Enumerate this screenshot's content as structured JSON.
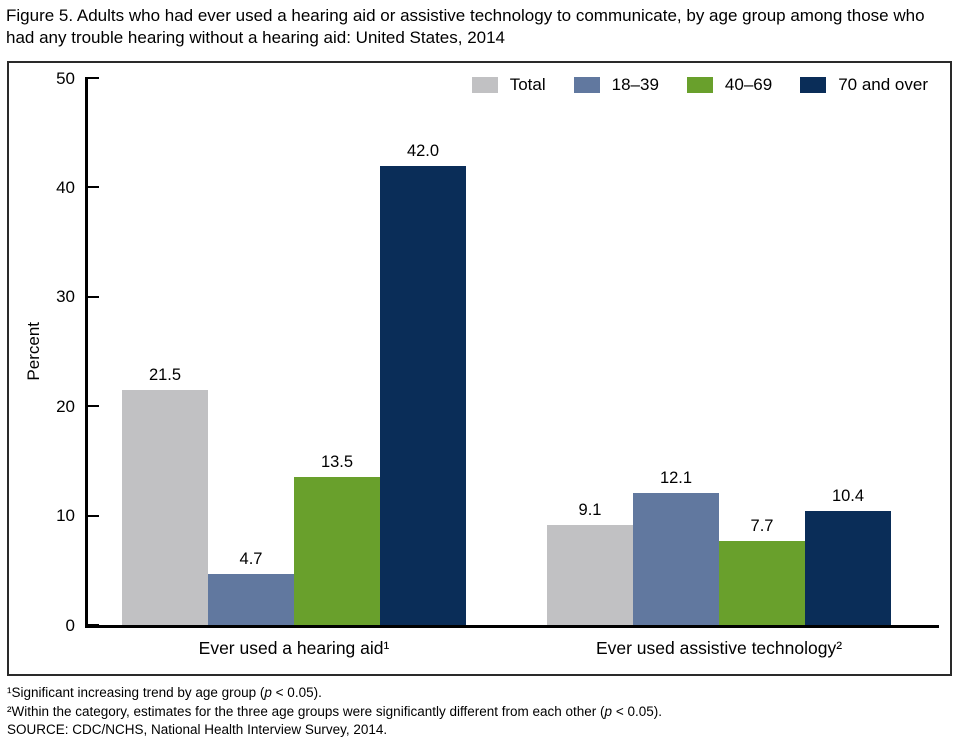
{
  "title": "Figure 5. Adults who had ever used a hearing aid or assistive technology to communicate, by age group among those who had any trouble hearing without a hearing aid: United States, 2014",
  "chart_data": {
    "type": "bar",
    "title": "",
    "xlabel": "",
    "ylabel": "Percent",
    "ylim": [
      0,
      50
    ],
    "yticks": [
      0,
      10,
      20,
      30,
      40,
      50
    ],
    "grid": false,
    "legend_position": "top-right",
    "value_labels": true,
    "categories": [
      "Ever used a hearing aid¹",
      "Ever used assistive technology²"
    ],
    "series": [
      {
        "name": "Total",
        "color": "#c1c1c3",
        "values": [
          21.5,
          9.1
        ]
      },
      {
        "name": "18–39",
        "color": "#61789f",
        "values": [
          4.7,
          12.1
        ]
      },
      {
        "name": "40–69",
        "color": "#69a02c",
        "values": [
          13.5,
          7.7
        ]
      },
      {
        "name": "70 and over",
        "color": "#0a2d58",
        "values": [
          42.0,
          10.4
        ]
      }
    ]
  },
  "colors": {
    "axis": "#000000",
    "frame": "#2a2a2a",
    "total": "#c1c1c3",
    "age_18_39": "#61789f",
    "age_40_69": "#69a02c",
    "age_70_over": "#0a2d58"
  },
  "footnotes": [
    {
      "pre": "¹Significant increasing trend by age group (",
      "p": "p",
      "post": " < 0.05)."
    },
    {
      "pre": "²Within the category, estimates for the three age groups were significantly different from each other (",
      "p": "p",
      "post": " < 0.05)."
    },
    {
      "pre": "SOURCE: CDC/NCHS, National Health Interview Survey, 2014.",
      "p": "",
      "post": ""
    }
  ]
}
